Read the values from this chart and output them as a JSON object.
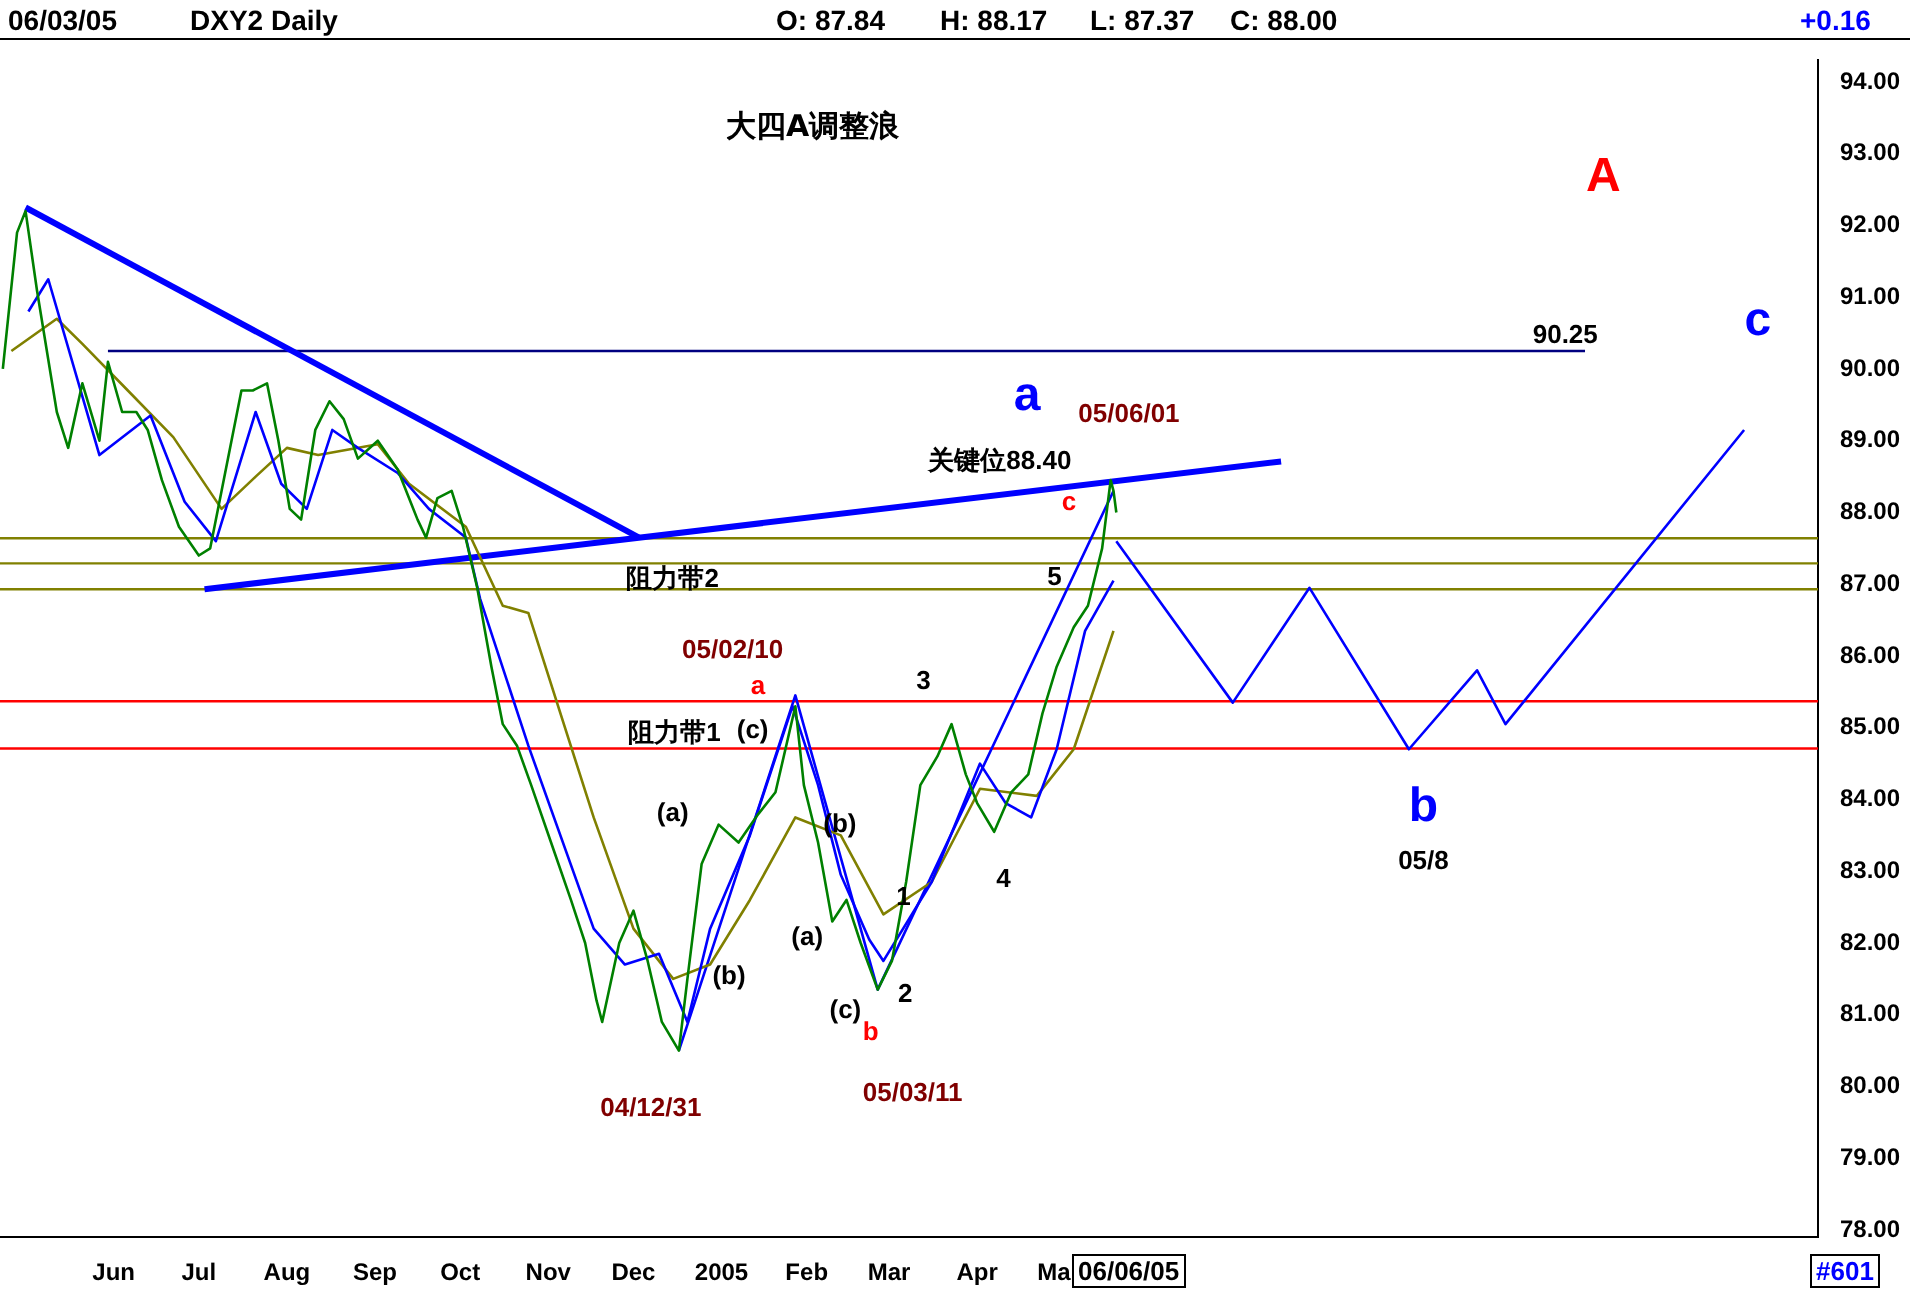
{
  "chart_data": {
    "type": "line",
    "title": "大四A调整浪",
    "annotations": [
      "06/03/05",
      "DXY2  Daily",
      "O: 87.84",
      "H: 88.17",
      "L: 87.37",
      "C: 88.00",
      "+0.16",
      "06/06/05",
      "#601",
      "A",
      "c",
      "90.25",
      "a",
      "05/06/01",
      "关键位88.40",
      "c",
      "5",
      "阻力带2",
      "05/02/10",
      "a",
      "(c)",
      "阻力带1",
      "3",
      "(a)",
      "(b)",
      "1",
      "(a)",
      "(b)",
      "4",
      "(c)",
      "2",
      "b",
      "04/12/31",
      "05/03/11",
      "b",
      "05/8"
    ],
    "xlim": [
      "2004-05-06",
      "2006-02-05"
    ],
    "xticks": [
      {
        "value": "2004-06-15",
        "label": "Jun"
      },
      {
        "value": "2004-07-15",
        "label": "Jul"
      },
      {
        "value": "2004-08-15",
        "label": "Aug"
      },
      {
        "value": "2004-09-15",
        "label": "Sep"
      },
      {
        "value": "2004-10-15",
        "label": "Oct"
      },
      {
        "value": "2004-11-15",
        "label": "Nov"
      },
      {
        "value": "2004-12-15",
        "label": "Dec"
      },
      {
        "value": "2005-01-15",
        "label": "2005"
      },
      {
        "value": "2005-02-14",
        "label": "Feb"
      },
      {
        "value": "2005-03-15",
        "label": "Mar"
      },
      {
        "value": "2005-04-15",
        "label": "Apr"
      },
      {
        "value": "2005-05-12",
        "label": "Ma"
      }
    ],
    "ylim": [
      77.9,
      94.3
    ],
    "yticks": [
      {
        "value": 78,
        "label": "78.00"
      },
      {
        "value": 79,
        "label": "79.00"
      },
      {
        "value": 80,
        "label": "80.00"
      },
      {
        "value": 81,
        "label": "81.00"
      },
      {
        "value": 82,
        "label": "82.00"
      },
      {
        "value": 83,
        "label": "83.00"
      },
      {
        "value": 84,
        "label": "84.00"
      },
      {
        "value": 85,
        "label": "85.00"
      },
      {
        "value": 86,
        "label": "86.00"
      },
      {
        "value": 87,
        "label": "87.00"
      },
      {
        "value": 88,
        "label": "88.00"
      },
      {
        "value": 89,
        "label": "89.00"
      },
      {
        "value": 90,
        "label": "90.00"
      },
      {
        "value": 91,
        "label": "91.00"
      },
      {
        "value": 92,
        "label": "92.00"
      },
      {
        "value": 93,
        "label": "93.00"
      },
      {
        "value": 94,
        "label": "94.00"
      }
    ],
    "grid": false,
    "legend": false,
    "marker": "none",
    "line_style": "solid",
    "ref_lines": [
      {
        "axis": "y",
        "value": 87.64,
        "color": "#808000"
      },
      {
        "axis": "y",
        "value": 87.29,
        "color": "#808000"
      },
      {
        "axis": "y",
        "value": 86.93,
        "color": "#808000"
      },
      {
        "axis": "y",
        "value": 85.37,
        "color": "#ff0000"
      },
      {
        "axis": "y",
        "value": 84.71,
        "color": "#ff0000"
      }
    ],
    "series": [
      {
        "color": "#008000",
        "x": [
          "2004-05-07",
          "2004-05-12",
          "2004-05-15",
          "2004-05-19",
          "2004-05-26",
          "2004-05-30",
          "2004-06-04",
          "2004-06-10",
          "2004-06-13",
          "2004-06-18",
          "2004-06-23",
          "2004-06-27",
          "2004-07-02",
          "2004-07-08",
          "2004-07-15",
          "2004-07-19",
          "2004-07-23",
          "2004-07-30",
          "2004-08-03",
          "2004-08-08",
          "2004-08-12",
          "2004-08-16",
          "2004-08-20",
          "2004-08-25",
          "2004-08-30",
          "2004-09-04",
          "2004-09-09",
          "2004-09-16",
          "2004-09-23",
          "2004-09-30",
          "2004-10-03",
          "2004-10-07",
          "2004-10-12",
          "2004-10-16",
          "2004-10-21",
          "2004-10-26",
          "2004-10-30",
          "2004-11-04",
          "2004-11-09",
          "2004-11-16",
          "2004-11-23",
          "2004-11-28",
          "2004-12-02",
          "2004-12-04",
          "2004-12-10",
          "2004-12-15",
          "2004-12-20",
          "2004-12-25",
          "2004-12-31",
          "2005-01-03",
          "2005-01-08",
          "2005-01-14",
          "2005-01-21",
          "2005-01-28",
          "2005-02-03",
          "2005-02-10",
          "2005-02-13",
          "2005-02-18",
          "2005-02-23",
          "2005-02-28",
          "2005-03-05",
          "2005-03-11",
          "2005-03-16",
          "2005-03-21",
          "2005-03-26",
          "2005-04-01",
          "2005-04-06",
          "2005-04-11",
          "2005-04-15",
          "2005-04-21",
          "2005-04-27",
          "2005-05-03",
          "2005-05-08",
          "2005-05-13",
          "2005-05-19",
          "2005-05-24",
          "2005-05-29",
          "2005-06-01",
          "2005-06-02",
          "2005-06-03"
        ],
        "values": [
          90.0,
          91.9,
          92.2,
          91.1,
          89.4,
          88.9,
          89.8,
          89.0,
          90.1,
          89.4,
          89.4,
          89.15,
          88.45,
          87.8,
          87.4,
          87.5,
          88.3,
          89.7,
          89.7,
          89.8,
          89.0,
          88.05,
          87.9,
          89.15,
          89.55,
          89.3,
          88.75,
          89.0,
          88.6,
          87.9,
          87.65,
          88.2,
          88.3,
          87.8,
          86.95,
          85.85,
          85.05,
          84.75,
          84.2,
          83.4,
          82.6,
          82.0,
          81.2,
          80.9,
          82.0,
          82.45,
          81.75,
          80.9,
          80.5,
          81.5,
          83.1,
          83.65,
          83.4,
          83.8,
          84.1,
          85.3,
          84.2,
          83.4,
          82.3,
          82.6,
          82.0,
          81.35,
          81.75,
          82.85,
          84.2,
          84.6,
          85.05,
          84.35,
          83.95,
          83.55,
          84.1,
          84.35,
          85.2,
          85.85,
          86.4,
          86.7,
          87.5,
          88.45,
          88.3,
          88.0
        ]
      },
      {
        "color": "#0000ff",
        "x": [
          "2004-05-16",
          "2004-05-23",
          "2004-06-10",
          "2004-06-28",
          "2004-07-10",
          "2004-07-21",
          "2004-08-04",
          "2004-08-13",
          "2004-08-22",
          "2004-08-31",
          "2004-09-09",
          "2004-09-23",
          "2004-10-04",
          "2004-10-17",
          "2004-10-22",
          "2004-11-08",
          "2004-12-01",
          "2004-12-12",
          "2004-12-24",
          "2005-01-03",
          "2005-01-11",
          "2005-01-25",
          "2005-02-09",
          "2005-02-18",
          "2005-02-26",
          "2005-03-08",
          "2005-03-13",
          "2005-03-30",
          "2005-04-16",
          "2005-04-25",
          "2005-05-04",
          "2005-05-13",
          "2005-05-23",
          "2005-06-02"
        ],
        "values": [
          90.8,
          91.25,
          88.8,
          89.35,
          88.15,
          87.6,
          89.4,
          88.4,
          88.05,
          89.15,
          88.9,
          88.55,
          88.05,
          87.65,
          86.8,
          84.75,
          82.2,
          81.7,
          81.85,
          80.9,
          82.2,
          83.5,
          85.3,
          84.2,
          82.95,
          82.05,
          81.75,
          82.85,
          84.5,
          83.95,
          83.75,
          84.7,
          86.35,
          87.05
        ]
      },
      {
        "color": "#808000",
        "x": [
          "2004-05-10",
          "2004-05-26",
          "2004-06-04",
          "2004-06-20",
          "2004-07-06",
          "2004-07-23",
          "2004-08-04",
          "2004-08-15",
          "2004-08-26",
          "2004-09-16",
          "2004-09-27",
          "2004-10-17",
          "2004-10-30",
          "2004-11-08",
          "2004-12-01",
          "2004-12-15",
          "2004-12-29",
          "2005-01-11",
          "2005-01-25",
          "2005-02-10",
          "2005-02-26",
          "2005-03-13",
          "2005-03-30",
          "2005-04-16",
          "2005-05-06",
          "2005-05-19",
          "2005-06-02"
        ],
        "values": [
          90.25,
          90.7,
          90.35,
          89.7,
          89.05,
          88.05,
          88.5,
          88.9,
          88.8,
          88.95,
          88.4,
          87.8,
          86.7,
          86.6,
          83.75,
          82.2,
          81.5,
          81.7,
          82.6,
          83.75,
          83.5,
          82.4,
          82.85,
          84.15,
          84.05,
          84.7,
          86.35
        ]
      },
      {
        "color": "#0000ff",
        "x": [
          "2004-12-31",
          "2005-02-10",
          "2005-03-11",
          "2005-06-02"
        ],
        "values": [
          80.5,
          85.45,
          81.35,
          88.3
        ]
      },
      {
        "color": "#0000ff",
        "x": [
          "2005-06-03",
          "2005-07-14",
          "2005-08-10",
          "2005-09-14",
          "2005-10-08",
          "2005-10-18",
          "2006-01-10"
        ],
        "values": [
          87.6,
          85.35,
          86.95,
          84.7,
          85.8,
          85.05,
          89.15
        ]
      },
      {
        "color": "#0000ff",
        "x": [
          "2004-05-15",
          "2004-12-17"
        ],
        "values": [
          92.25,
          87.65
        ]
      },
      {
        "color": "#0000ff",
        "x": [
          "2004-07-17",
          "2005-07-31"
        ],
        "values": [
          86.93,
          88.71
        ]
      },
      {
        "color": "#000080",
        "x": [
          "2004-06-13",
          "2005-11-15"
        ],
        "values": [
          90.25,
          90.25
        ]
      }
    ]
  }
}
